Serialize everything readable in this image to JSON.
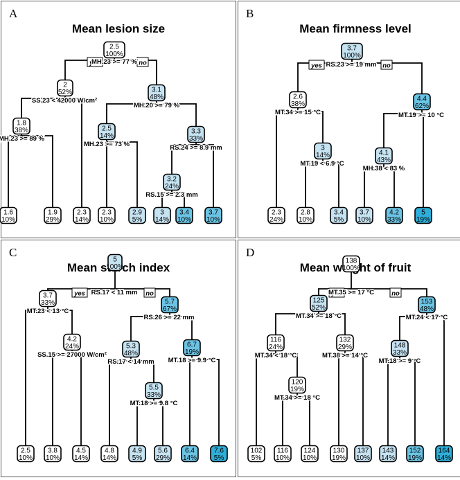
{
  "panels": [
    {
      "letter": "A",
      "title": "Mean lesion size",
      "yes_label": "yes",
      "no_label": "no",
      "nodes": [
        {
          "id": "root",
          "value": "2.5",
          "pct": "100%",
          "shade": 0
        },
        {
          "id": "L",
          "value": "2",
          "pct": "52%",
          "shade": 0
        },
        {
          "id": "R",
          "value": "3.1",
          "pct": "48%",
          "shade": 1
        },
        {
          "id": "LL",
          "value": "1.8",
          "pct": "38%",
          "shade": 0
        },
        {
          "id": "RL",
          "value": "2.5",
          "pct": "14%",
          "shade": 1
        },
        {
          "id": "RR",
          "value": "3.3",
          "pct": "33%",
          "shade": 1
        },
        {
          "id": "RRL",
          "value": "3.2",
          "pct": "24%",
          "shade": 1
        },
        {
          "id": "f1",
          "value": "1.6",
          "pct": "10%",
          "shade": 0
        },
        {
          "id": "f2",
          "value": "1.9",
          "pct": "29%",
          "shade": 0
        },
        {
          "id": "f3",
          "value": "2.3",
          "pct": "14%",
          "shade": 0
        },
        {
          "id": "f4",
          "value": "2.3",
          "pct": "10%",
          "shade": 0
        },
        {
          "id": "f5",
          "value": "2.9",
          "pct": "5%",
          "shade": 1
        },
        {
          "id": "f6",
          "value": "3",
          "pct": "14%",
          "shade": 1
        },
        {
          "id": "f7",
          "value": "3.4",
          "pct": "10%",
          "shade": 2
        },
        {
          "id": "f8",
          "value": "3.7",
          "pct": "10%",
          "shade": 2
        }
      ],
      "splits": [
        {
          "node": "root",
          "text": "MH.23 >= 77 %"
        },
        {
          "node": "L",
          "text": "SS.23 < 42000 W/cm²"
        },
        {
          "node": "R",
          "text": "MH.20 >= 79 %"
        },
        {
          "node": "LL",
          "text": "MH.23 >= 89 %"
        },
        {
          "node": "RL",
          "text": "MH.23 >= 73 %"
        },
        {
          "node": "RR",
          "text": "RS.24 >= 8.9 mm"
        },
        {
          "node": "RRL",
          "text": "RS.15 >= 2.3 mm"
        }
      ]
    },
    {
      "letter": "B",
      "title": "Mean firmness level",
      "yes_label": "yes",
      "no_label": "no",
      "nodes": [
        {
          "id": "root",
          "value": "3.7",
          "pct": "100%",
          "shade": 1
        },
        {
          "id": "L",
          "value": "2.6",
          "pct": "38%",
          "shade": 0
        },
        {
          "id": "R",
          "value": "4.4",
          "pct": "62%",
          "shade": 2
        },
        {
          "id": "LR",
          "value": "3",
          "pct": "14%",
          "shade": 1
        },
        {
          "id": "RL",
          "value": "4.1",
          "pct": "43%",
          "shade": 1
        },
        {
          "id": "f1",
          "value": "2.3",
          "pct": "24%",
          "shade": 0
        },
        {
          "id": "f2",
          "value": "2.8",
          "pct": "10%",
          "shade": 0
        },
        {
          "id": "f3",
          "value": "3.4",
          "pct": "5%",
          "shade": 1
        },
        {
          "id": "f4",
          "value": "3.7",
          "pct": "10%",
          "shade": 1
        },
        {
          "id": "f5",
          "value": "4.2",
          "pct": "33%",
          "shade": 2
        },
        {
          "id": "f6",
          "value": "5",
          "pct": "19%",
          "shade": 3
        }
      ],
      "splits": [
        {
          "node": "root",
          "text": "RS.23 >= 19 mm"
        },
        {
          "node": "L",
          "text": "MT.34 >= 15 °C"
        },
        {
          "node": "R",
          "text": "MT.19 >= 10 °C"
        },
        {
          "node": "LR",
          "text": "MT.19 < 6.9 °C"
        },
        {
          "node": "RL",
          "text": "MH.38 < 83 %"
        }
      ]
    },
    {
      "letter": "C",
      "title": "Mean starch index",
      "yes_label": "yes",
      "no_label": "no",
      "nodes": [
        {
          "id": "root",
          "value": "5",
          "pct": "100%",
          "shade": 1
        },
        {
          "id": "L",
          "value": "3.7",
          "pct": "33%",
          "shade": 0
        },
        {
          "id": "R",
          "value": "5.7",
          "pct": "67%",
          "shade": 2
        },
        {
          "id": "LR",
          "value": "4.2",
          "pct": "24%",
          "shade": 0
        },
        {
          "id": "RL",
          "value": "5.3",
          "pct": "48%",
          "shade": 1
        },
        {
          "id": "RR",
          "value": "6.7",
          "pct": "19%",
          "shade": 2
        },
        {
          "id": "RLR",
          "value": "5.5",
          "pct": "33%",
          "shade": 1
        },
        {
          "id": "f1",
          "value": "2.5",
          "pct": "10%",
          "shade": 0
        },
        {
          "id": "f2",
          "value": "3.8",
          "pct": "10%",
          "shade": 0
        },
        {
          "id": "f3",
          "value": "4.5",
          "pct": "14%",
          "shade": 0
        },
        {
          "id": "f4",
          "value": "4.8",
          "pct": "14%",
          "shade": 0
        },
        {
          "id": "f5",
          "value": "4.9",
          "pct": "5%",
          "shade": 1
        },
        {
          "id": "f6",
          "value": "5.6",
          "pct": "29%",
          "shade": 1
        },
        {
          "id": "f7",
          "value": "6.4",
          "pct": "14%",
          "shade": 2
        },
        {
          "id": "f8",
          "value": "7.6",
          "pct": "5%",
          "shade": 3
        }
      ],
      "splits": [
        {
          "node": "root",
          "text": "RS.17 < 11 mm"
        },
        {
          "node": "L",
          "text": "MT.23 < 13 °C"
        },
        {
          "node": "R",
          "text": "RS.26 >= 22 mm"
        },
        {
          "node": "LR",
          "text": "SS.15 >= 27000 W/cm²"
        },
        {
          "node": "RL",
          "text": "RS.17 < 14 mm"
        },
        {
          "node": "RR",
          "text": "MT.18 >= 9.9 °C"
        },
        {
          "node": "RLR",
          "text": "MT.18 >= 9.8 °C"
        }
      ]
    },
    {
      "letter": "D",
      "title": "Mean weight of fruit",
      "yes_label": "yes",
      "no_label": "no",
      "nodes": [
        {
          "id": "root",
          "value": "138",
          "pct": "100%",
          "shade": 0
        },
        {
          "id": "L",
          "value": "125",
          "pct": "52%",
          "shade": 1
        },
        {
          "id": "R",
          "value": "153",
          "pct": "48%",
          "shade": 2
        },
        {
          "id": "LL",
          "value": "116",
          "pct": "24%",
          "shade": 0
        },
        {
          "id": "LR",
          "value": "132",
          "pct": "29%",
          "shade": 0
        },
        {
          "id": "RL",
          "value": "148",
          "pct": "33%",
          "shade": 1
        },
        {
          "id": "LLR",
          "value": "120",
          "pct": "19%",
          "shade": 0
        },
        {
          "id": "f1",
          "value": "102",
          "pct": "5%",
          "shade": 0
        },
        {
          "id": "f2",
          "value": "116",
          "pct": "10%",
          "shade": 0
        },
        {
          "id": "f3",
          "value": "124",
          "pct": "10%",
          "shade": 0
        },
        {
          "id": "f4",
          "value": "130",
          "pct": "19%",
          "shade": 0
        },
        {
          "id": "f5",
          "value": "137",
          "pct": "10%",
          "shade": 1
        },
        {
          "id": "f6",
          "value": "143",
          "pct": "14%",
          "shade": 1
        },
        {
          "id": "f7",
          "value": "152",
          "pct": "19%",
          "shade": 2
        },
        {
          "id": "f8",
          "value": "164",
          "pct": "14%",
          "shade": 3
        }
      ],
      "splits": [
        {
          "node": "root",
          "text": "MT.35 >= 17 °C"
        },
        {
          "node": "L",
          "text": "MT.34 >= 18 °C"
        },
        {
          "node": "R",
          "text": "MT.24 < 17 °C"
        },
        {
          "node": "LL",
          "text": "MT.34 < 18 °C"
        },
        {
          "node": "LR",
          "text": "MT.38 >= 14 °C"
        },
        {
          "node": "RL",
          "text": "MT.18 >= 9 °C"
        },
        {
          "node": "LLR",
          "text": "MT.34 >= 18 °C"
        }
      ]
    }
  ],
  "colors": {
    "shade_0": "#ffffff",
    "shade_1": "#c6e3f2",
    "shade_2": "#6cc4e4",
    "shade_3": "#2eaed8",
    "border": "#000000",
    "panel_border": "#555555"
  }
}
